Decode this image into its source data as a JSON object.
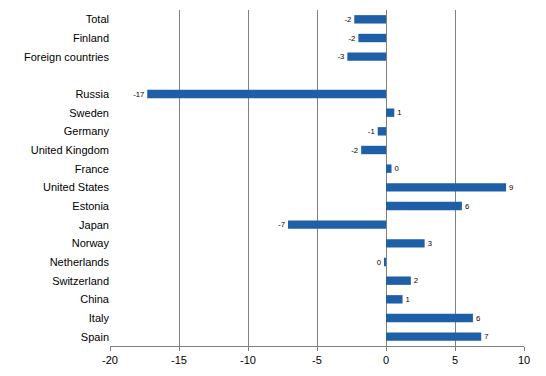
{
  "chart_data": {
    "type": "bar",
    "orientation": "horizontal",
    "categories": [
      "Total",
      "Finland",
      "Foreign countries",
      null,
      "Russia",
      "Sweden",
      "Germany",
      "United Kingdom",
      "France",
      "United States",
      "Estonia",
      "Japan",
      "Norway",
      "Netherlands",
      "Switzerland",
      "China",
      "Italy",
      "Spain"
    ],
    "values": [
      -2.3,
      -2.0,
      -2.8,
      null,
      -17.3,
      0.6,
      -0.6,
      -1.8,
      0.4,
      8.7,
      5.5,
      -7.1,
      2.8,
      -0.1,
      1.8,
      1.2,
      6.3,
      6.9
    ],
    "value_labels": [
      "-2",
      "-2",
      "-3",
      null,
      "-17",
      "1",
      "-1",
      "-2",
      "0",
      "9",
      "6",
      "-7",
      "3",
      "0",
      "2",
      "1",
      "6",
      "7"
    ],
    "data_labels": true,
    "color": "#1f5fa8",
    "xlim": [
      -20,
      10
    ],
    "xticks": [
      -20,
      -15,
      -10,
      -5,
      0,
      5,
      10
    ],
    "grid": true
  }
}
